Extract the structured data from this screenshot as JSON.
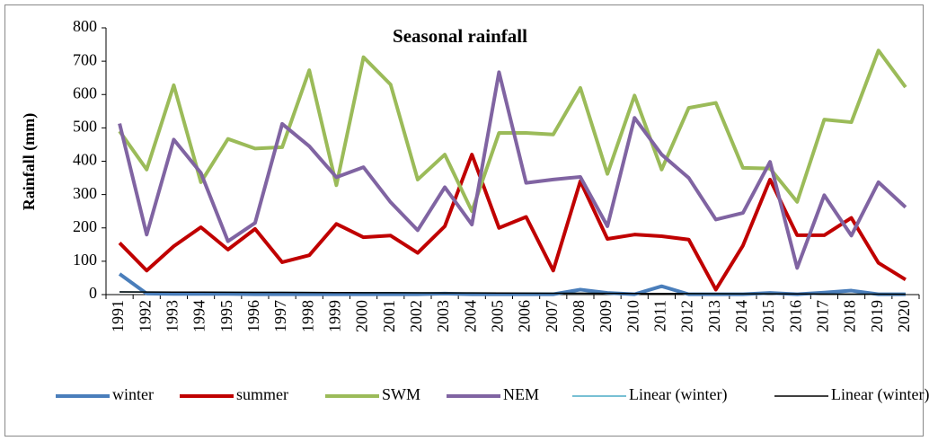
{
  "chart_data": {
    "type": "line",
    "title": "Seasonal rainfall",
    "y_label": "Rainfall (mm)",
    "categories": [
      "1991",
      "1992",
      "1993",
      "1994",
      "1995",
      "1996",
      "1997",
      "1998",
      "1999",
      "2000",
      "2001",
      "2002",
      "2003",
      "2004",
      "2005",
      "2006",
      "2007",
      "2008",
      "2009",
      "2010",
      "2011",
      "2012",
      "2013",
      "2014",
      "2015",
      "2016",
      "2017",
      "2018",
      "2019",
      "2020"
    ],
    "ylim": [
      0,
      800
    ],
    "yticks": [
      0,
      100,
      200,
      300,
      400,
      500,
      600,
      700,
      800
    ],
    "series": [
      {
        "name": "winter",
        "color": "#4a7ebb",
        "width": 4,
        "values": [
          62,
          3,
          2,
          2,
          2,
          1,
          1,
          1,
          1,
          1,
          1,
          1,
          3,
          1,
          1,
          1,
          1,
          15,
          5,
          1,
          25,
          1,
          1,
          1,
          5,
          1,
          6,
          12,
          1,
          1
        ]
      },
      {
        "name": "summer",
        "color": "#c00000",
        "width": 4,
        "values": [
          155,
          72,
          145,
          202,
          135,
          197,
          97,
          118,
          212,
          172,
          177,
          125,
          205,
          420,
          200,
          233,
          72,
          340,
          167,
          180,
          175,
          165,
          15,
          147,
          345,
          178,
          178,
          230,
          95,
          45
        ]
      },
      {
        "name": "SWM",
        "color": "#9bbb59",
        "width": 4,
        "values": [
          490,
          375,
          628,
          337,
          467,
          438,
          442,
          673,
          328,
          712,
          630,
          345,
          420,
          250,
          485,
          485,
          480,
          620,
          362,
          597,
          375,
          560,
          575,
          380,
          378,
          278,
          525,
          517,
          732,
          622
        ]
      },
      {
        "name": "NEM",
        "color": "#8064a2",
        "width": 4,
        "values": [
          513,
          180,
          465,
          365,
          160,
          215,
          512,
          445,
          352,
          382,
          277,
          193,
          322,
          210,
          667,
          335,
          345,
          353,
          205,
          530,
          420,
          350,
          225,
          245,
          398,
          80,
          298,
          177,
          337,
          262
        ]
      },
      {
        "name": "Linear (winter)",
        "color": "#4bacc6",
        "width": 1.5,
        "values": [
          8,
          7.8,
          7.5,
          7.3,
          7,
          6.8,
          6.6,
          6.3,
          6.1,
          5.8,
          5.6,
          5.4,
          5.1,
          4.9,
          4.6,
          4.4,
          4.2,
          3.9,
          3.7,
          3.4,
          3.2,
          3,
          2.7,
          2.5,
          2.2,
          2,
          1.8,
          1.5,
          1.3,
          1
        ]
      },
      {
        "name": "Linear (winter)",
        "color": "#000000",
        "width": 1.5,
        "values": [
          8,
          7.8,
          7.5,
          7.3,
          7,
          6.8,
          6.6,
          6.3,
          6.1,
          5.8,
          5.6,
          5.4,
          5.1,
          4.9,
          4.6,
          4.4,
          4.2,
          3.9,
          3.7,
          3.4,
          3.2,
          3,
          2.7,
          2.5,
          2.2,
          2,
          1.8,
          1.5,
          1.3,
          1
        ]
      }
    ]
  }
}
